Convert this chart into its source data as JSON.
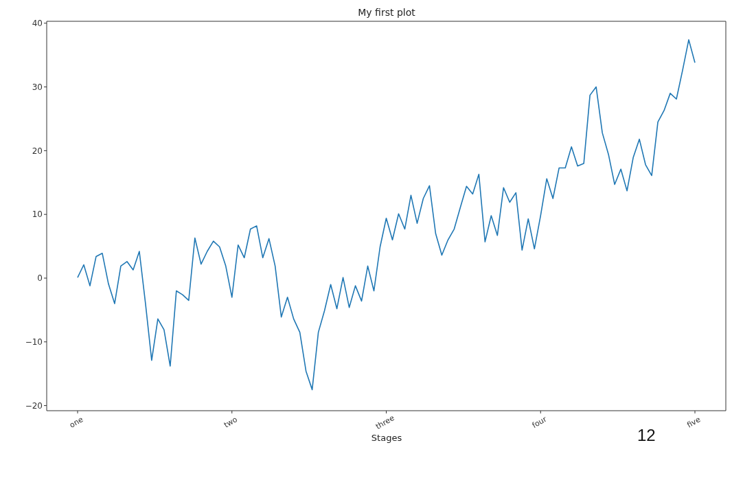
{
  "chart_data": {
    "type": "line",
    "title": "My first plot",
    "xlabel": "Stages",
    "categories": [
      "one",
      null,
      null,
      null,
      null,
      null,
      null,
      null,
      null,
      null,
      null,
      null,
      null,
      null,
      null,
      null,
      null,
      null,
      null,
      null,
      null,
      null,
      null,
      null,
      null,
      "two",
      null,
      null,
      null,
      null,
      null,
      null,
      null,
      null,
      null,
      null,
      null,
      null,
      null,
      null,
      null,
      null,
      null,
      null,
      null,
      null,
      null,
      null,
      null,
      null,
      "three",
      null,
      null,
      null,
      null,
      null,
      null,
      null,
      null,
      null,
      null,
      null,
      null,
      null,
      null,
      null,
      null,
      null,
      null,
      null,
      null,
      null,
      null,
      null,
      null,
      "four",
      null,
      null,
      null,
      null,
      null,
      null,
      null,
      null,
      null,
      null,
      null,
      null,
      null,
      null,
      null,
      null,
      null,
      null,
      null,
      null,
      null,
      null,
      null,
      null,
      "five"
    ],
    "values": [
      0.1,
      2.1,
      -1.2,
      3.4,
      3.9,
      -0.9,
      -4.0,
      1.9,
      2.6,
      1.3,
      4.2,
      -4.0,
      -12.9,
      -6.4,
      -8.1,
      -13.8,
      -2.0,
      -2.6,
      -3.5,
      6.3,
      2.2,
      4.2,
      5.8,
      4.9,
      1.9,
      -3.0,
      5.2,
      3.2,
      7.7,
      8.2,
      3.2,
      6.2,
      1.9,
      -6.1,
      -3.0,
      -6.4,
      -8.5,
      -14.6,
      -17.5,
      -8.5,
      -5.1,
      -1.0,
      -4.8,
      0.1,
      -4.6,
      -1.2,
      -3.6,
      1.9,
      -2.0,
      4.9,
      9.4,
      6.0,
      10.1,
      7.7,
      13.0,
      8.6,
      12.5,
      14.5,
      7.0,
      3.6,
      6.0,
      7.7,
      11.1,
      14.4,
      13.2,
      16.3,
      5.7,
      9.8,
      6.7,
      14.2,
      11.9,
      13.4,
      4.4,
      9.3,
      4.6,
      9.8,
      15.6,
      12.5,
      17.3,
      17.3,
      20.6,
      17.6,
      18.0,
      28.7,
      30.0,
      22.8,
      19.4,
      14.7,
      17.1,
      13.7,
      18.9,
      21.8,
      17.8,
      16.1,
      24.5,
      26.3,
      29.0,
      28.1,
      32.6,
      37.4,
      33.8
    ],
    "color": "#1f77b4",
    "marker": "none",
    "line_style": "solid",
    "ylim": [
      -20.8,
      40.3
    ],
    "yticks": [
      -20,
      -10,
      0,
      10,
      20,
      30,
      40
    ],
    "annotations": [
      "12"
    ]
  }
}
